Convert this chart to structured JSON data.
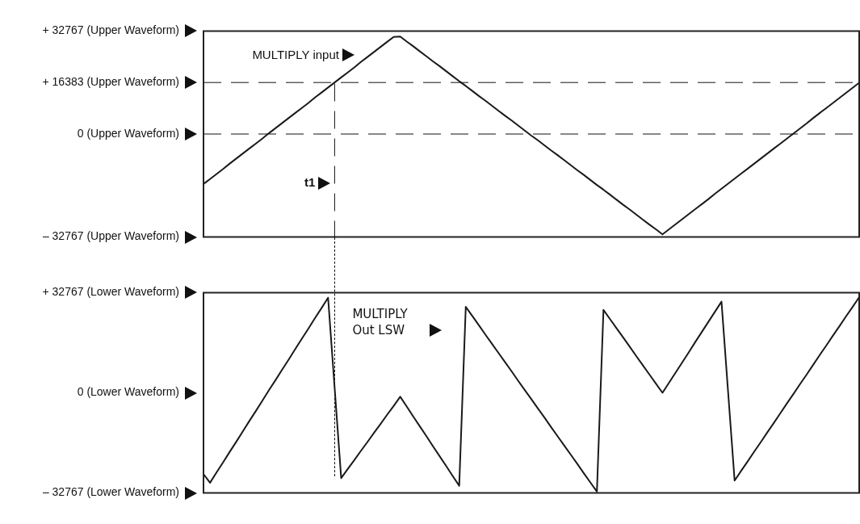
{
  "chart_data": [
    {
      "type": "line",
      "categories": [
        null,
        null,
        null,
        null,
        null,
        null,
        null,
        null,
        null,
        null,
        null,
        null,
        null,
        null,
        null,
        null,
        null,
        null,
        null,
        null,
        null,
        null,
        null,
        null,
        null,
        null,
        null,
        null,
        null,
        null,
        null,
        null,
        null,
        null,
        null,
        null,
        null,
        null,
        null,
        null,
        null,
        null,
        null,
        null,
        null,
        null,
        null,
        null,
        null,
        null,
        null,
        null,
        null,
        null,
        null,
        null,
        null,
        null,
        null,
        null,
        null,
        null,
        null,
        null,
        null,
        null,
        null,
        null,
        null,
        null,
        null,
        null,
        null,
        null,
        null,
        null,
        null,
        null,
        null,
        null,
        null,
        null,
        null,
        null,
        null,
        null,
        null,
        null,
        null,
        null,
        null,
        null,
        null,
        null,
        null,
        null,
        null,
        null,
        null,
        null,
        null
      ],
      "ylim": [
        -32767,
        32767
      ],
      "yticks": [
        {
          "value": 32767,
          "label": "+ 32767 (Upper Waveform)"
        },
        {
          "value": 16383,
          "label": "+ 16383 (Upper Waveform)"
        },
        {
          "value": 0,
          "label": "0 (Upper Waveform)"
        },
        {
          "value": -32767,
          "label": "– 32767 (Upper Waveform)"
        }
      ],
      "tick_labels": "y",
      "legend": "top left",
      "marker": "none",
      "line_style": "solid",
      "ref_lines": [
        {
          "axis": "y",
          "value": 16383,
          "line_style": "dashed"
        },
        {
          "axis": "y",
          "value": 0,
          "line_style": "dashed"
        }
      ],
      "annotations": [
        "t1"
      ],
      "series": [
        {
          "name": "MULTIPLY input",
          "color": "#1a1a1a",
          "values": [
            -15900,
            -14300,
            -12700,
            -11100,
            -9400,
            -7800,
            -6200,
            -4600,
            -3000,
            -1400,
            300,
            1900,
            3500,
            5100,
            6700,
            8300,
            9900,
            11600,
            13200,
            14800,
            16400,
            18000,
            19600,
            21200,
            22900,
            24500,
            26100,
            27700,
            29300,
            30900,
            31000,
            29400,
            27900,
            26300,
            24700,
            23100,
            21600,
            20000,
            18400,
            16800,
            15300,
            13700,
            12100,
            10600,
            9000,
            7400,
            5800,
            4300,
            2700,
            1100,
            -500,
            -2000,
            -3600,
            -5200,
            -6700,
            -8300,
            -9900,
            -11500,
            -13000,
            -14600,
            -16200,
            -17700,
            -19300,
            -20900,
            -22500,
            -24000,
            -25600,
            -27200,
            -28800,
            -30300,
            -31900,
            -30300,
            -28700,
            -27100,
            -25500,
            -23900,
            -22300,
            -20700,
            -19000,
            -17400,
            -15800,
            -14200,
            -12600,
            -11000,
            -9400,
            -7800,
            -6200,
            -4600,
            -3000,
            -1400,
            200,
            1800,
            3400,
            5100,
            6700,
            8300,
            9900,
            11500,
            13100,
            14700,
            16300
          ]
        }
      ]
    },
    {
      "type": "line",
      "categories": [
        null,
        null,
        null,
        null,
        null,
        null,
        null,
        null,
        null,
        null,
        null,
        null,
        null,
        null,
        null,
        null,
        null,
        null,
        null,
        null,
        null,
        null,
        null,
        null,
        null,
        null,
        null,
        null,
        null,
        null,
        null,
        null,
        null,
        null,
        null,
        null,
        null,
        null,
        null,
        null,
        null,
        null,
        null,
        null,
        null,
        null,
        null,
        null,
        null,
        null,
        null,
        null,
        null,
        null,
        null,
        null,
        null,
        null,
        null,
        null,
        null,
        null,
        null,
        null,
        null,
        null,
        null,
        null,
        null,
        null,
        null,
        null,
        null,
        null,
        null,
        null,
        null,
        null,
        null,
        null,
        null,
        null,
        null,
        null,
        null,
        null,
        null,
        null,
        null,
        null,
        null,
        null,
        null,
        null,
        null,
        null,
        null,
        null,
        null,
        null,
        null
      ],
      "ylim": [
        -32767,
        32767
      ],
      "yticks": [
        {
          "value": 32767,
          "label": "+ 32767 (Lower Waveform)"
        },
        {
          "value": 0,
          "label": "0 (Lower Waveform)"
        },
        {
          "value": -32767,
          "label": "– 32767 (Lower Waveform)"
        }
      ],
      "tick_labels": "y",
      "legend": "top",
      "marker": "none",
      "line_style": "solid",
      "series": [
        {
          "name": "MULTIPLY Out LSW",
          "color": "#1a1a1a",
          "values": [
            -26600,
            -29400,
            -26000,
            -22700,
            -19300,
            -16000,
            -12600,
            -9200,
            -5900,
            -2500,
            900,
            4200,
            7600,
            10900,
            14300,
            17700,
            21000,
            24400,
            27700,
            31100,
            1600,
            -27900,
            -24900,
            -22000,
            -19000,
            -16100,
            -13100,
            -10200,
            -7200,
            -4300,
            -1300,
            -4500,
            -7800,
            -11000,
            -14200,
            -17500,
            -20700,
            -23900,
            -27200,
            -30400,
            28100,
            25100,
            22100,
            19000,
            16000,
            13000,
            10000,
            7000,
            3900,
            900,
            -2100,
            -5100,
            -8100,
            -11200,
            -14200,
            -17200,
            -20200,
            -23200,
            -26300,
            -29300,
            -32300,
            27100,
            24100,
            21100,
            18100,
            15100,
            12000,
            9000,
            6000,
            3000,
            0,
            3300,
            6600,
            9900,
            13200,
            16600,
            19900,
            23200,
            26500,
            29800,
            500,
            -28700,
            -25500,
            -22400,
            -19200,
            -16100,
            -12900,
            -9800,
            -6600,
            -3400,
            -300,
            2900,
            6000,
            9200,
            12400,
            15500,
            18700,
            21800,
            25000,
            28100,
            31300
          ]
        }
      ]
    }
  ]
}
